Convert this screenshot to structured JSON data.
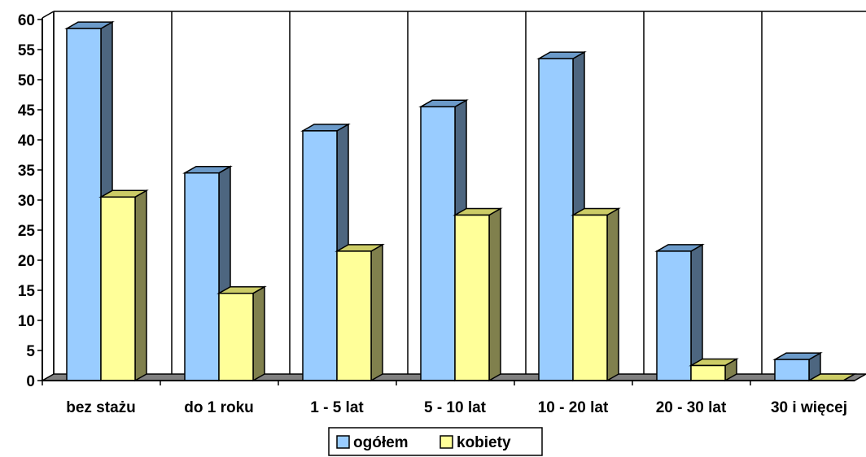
{
  "chart_data": {
    "type": "bar",
    "categories": [
      "bez stażu",
      "do 1 roku",
      "1 - 5 lat",
      "5 - 10 lat",
      "10 - 20 lat",
      "20 - 30 lat",
      "30 i więcej"
    ],
    "series": [
      {
        "name": "ogółem",
        "values": [
          58.5,
          34.5,
          41.5,
          45.5,
          53.5,
          21.5,
          3.5
        ],
        "color": "#99ccff",
        "side_color": "#4d6680",
        "top_color": "#6b9ac9"
      },
      {
        "name": "kobiety",
        "values": [
          30.5,
          14.5,
          21.5,
          27.5,
          27.5,
          2.5,
          0
        ],
        "color": "#ffff99",
        "side_color": "#80804d",
        "top_color": "#cccc66"
      }
    ],
    "y_ticks": [
      "0",
      "5",
      "10",
      "15",
      "20",
      "25",
      "30",
      "35",
      "40",
      "45",
      "50",
      "55",
      "60"
    ],
    "ylim": [
      0,
      60
    ],
    "grid": "vertical",
    "legend": "bottom-center",
    "floor_color": "#808080",
    "title": "",
    "xlabel": "",
    "ylabel": ""
  }
}
